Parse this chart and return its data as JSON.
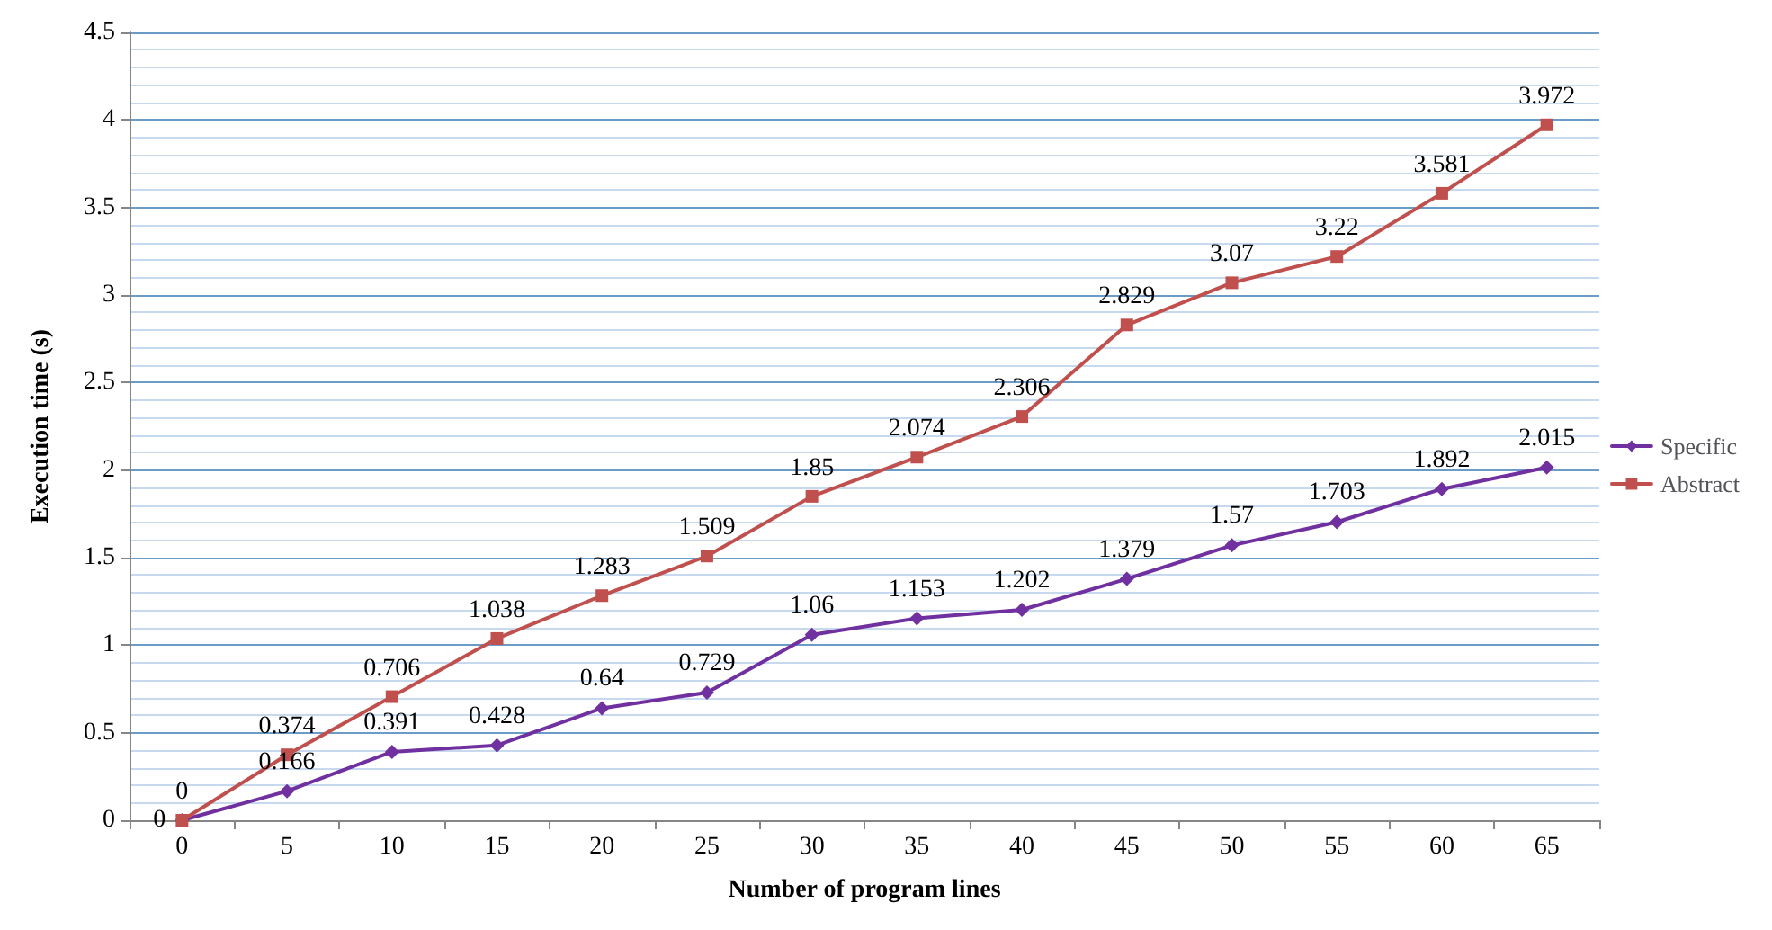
{
  "chart_data": {
    "type": "line",
    "xlabel": "Number of program lines",
    "ylabel": "Execution time (s)",
    "categories": [
      "0",
      "5",
      "10",
      "15",
      "20",
      "25",
      "30",
      "35",
      "40",
      "45",
      "50",
      "55",
      "60",
      "65"
    ],
    "series": [
      {
        "name": "Specific",
        "color": "#7030a0",
        "marker": "diamond",
        "values": [
          0,
          0.166,
          0.391,
          0.428,
          0.64,
          0.729,
          1.06,
          1.153,
          1.202,
          1.379,
          1.57,
          1.703,
          1.892,
          2.015
        ]
      },
      {
        "name": "Abstract",
        "color": "#c0504d",
        "marker": "square",
        "values": [
          0,
          0.374,
          0.706,
          1.038,
          1.283,
          1.509,
          1.85,
          2.074,
          2.306,
          2.829,
          3.07,
          3.22,
          3.581,
          3.972
        ]
      }
    ],
    "ylim": [
      0,
      4.5
    ],
    "yticks": [
      0,
      {
        "value": 0.1,
        "label": null
      },
      {
        "value": 0.2,
        "label": null
      },
      {
        "value": 0.3,
        "label": null
      },
      {
        "value": 0.4,
        "label": null
      },
      0.5,
      {
        "value": 0.6,
        "label": null
      },
      {
        "value": 0.7,
        "label": null
      },
      {
        "value": 0.8,
        "label": null
      },
      {
        "value": 0.9,
        "label": null
      },
      1,
      {
        "value": 1.1,
        "label": null
      },
      {
        "value": 1.2,
        "label": null
      },
      {
        "value": 1.3,
        "label": null
      },
      {
        "value": 1.4,
        "label": null
      },
      1.5,
      {
        "value": 1.6,
        "label": null
      },
      {
        "value": 1.7,
        "label": null
      },
      {
        "value": 1.8,
        "label": null
      },
      {
        "value": 1.9,
        "label": null
      },
      2,
      {
        "value": 2.1,
        "label": null
      },
      {
        "value": 2.2,
        "label": null
      },
      {
        "value": 2.3,
        "label": null
      },
      {
        "value": 2.4,
        "label": null
      },
      2.5,
      {
        "value": 2.6,
        "label": null
      },
      {
        "value": 2.7,
        "label": null
      },
      {
        "value": 2.8,
        "label": null
      },
      {
        "value": 2.9,
        "label": null
      },
      3,
      {
        "value": 3.1,
        "label": null
      },
      {
        "value": 3.2,
        "label": null
      },
      {
        "value": 3.3,
        "label": null
      },
      {
        "value": 3.4,
        "label": null
      },
      3.5,
      {
        "value": 3.6,
        "label": null
      },
      {
        "value": 3.7,
        "label": null
      },
      {
        "value": 3.8,
        "label": null
      },
      {
        "value": 3.9,
        "label": null
      },
      4,
      {
        "value": 4.1,
        "label": null
      },
      {
        "value": 4.2,
        "label": null
      },
      {
        "value": 4.3,
        "label": null
      },
      {
        "value": 4.4,
        "label": null
      },
      4.5
    ],
    "grid": "y",
    "legend": "right",
    "data_labels": true
  }
}
